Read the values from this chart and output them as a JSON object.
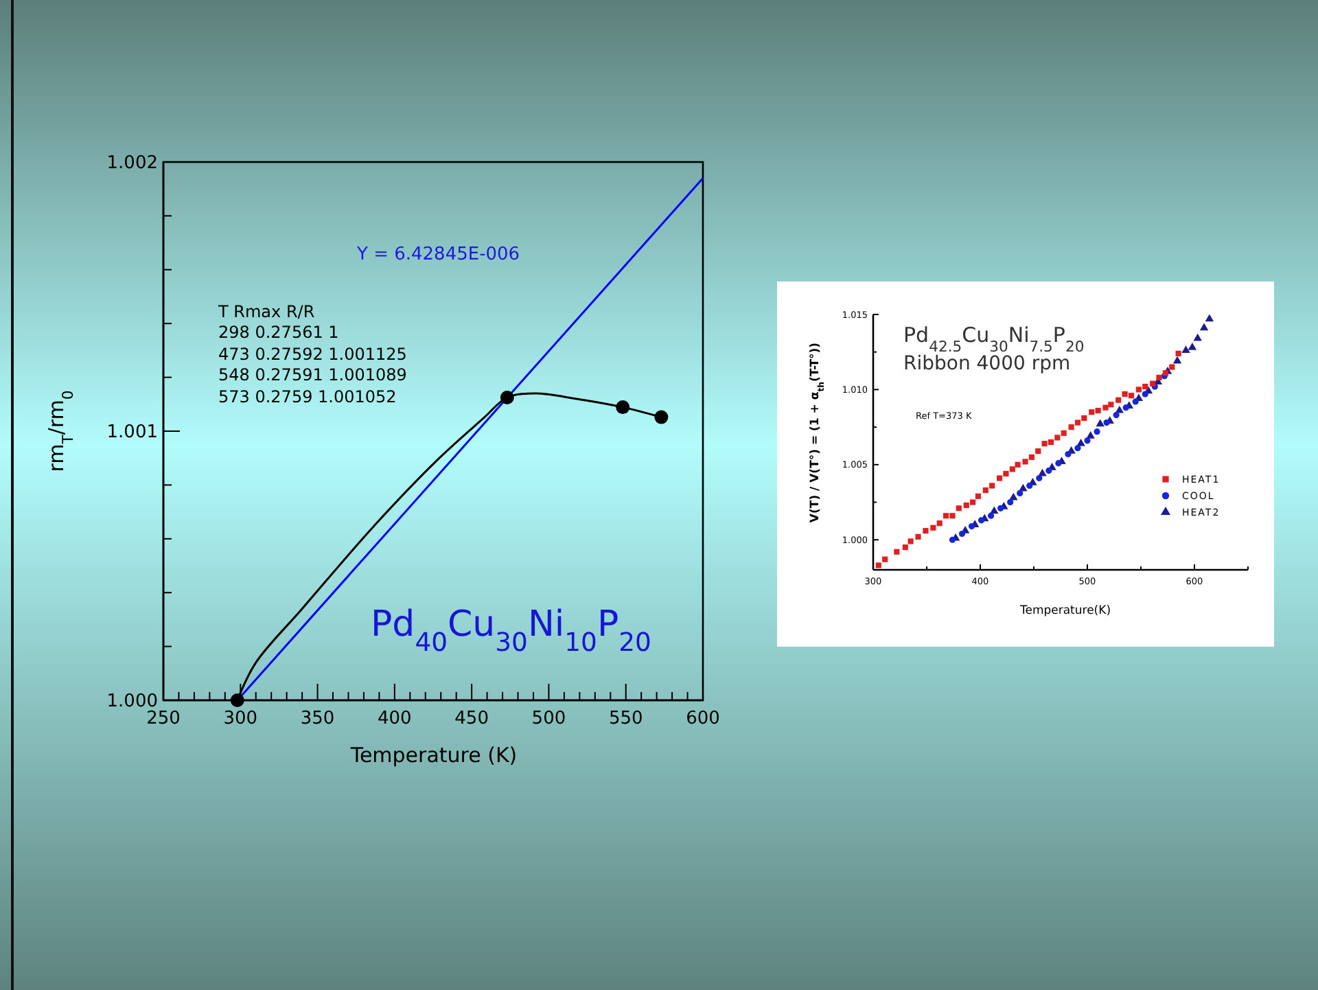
{
  "chart_data": [
    {
      "type": "line",
      "xlabel": "Temperature (K)",
      "ylabel": "rm$_{T}$/rm$_{0}$",
      "xlim": [
        250,
        600
      ],
      "ylim": [
        1.0,
        1.002
      ],
      "xticks": [
        250,
        {
          "value": 260,
          "label": null
        },
        {
          "value": 270,
          "label": null
        },
        {
          "value": 280,
          "label": null
        },
        {
          "value": 290,
          "label": null
        },
        300,
        {
          "value": 310,
          "label": null
        },
        {
          "value": 320,
          "label": null
        },
        {
          "value": 330,
          "label": null
        },
        {
          "value": 340,
          "label": null
        },
        350,
        {
          "value": 360,
          "label": null
        },
        {
          "value": 370,
          "label": null
        },
        {
          "value": 380,
          "label": null
        },
        {
          "value": 390,
          "label": null
        },
        400,
        {
          "value": 410,
          "label": null
        },
        {
          "value": 420,
          "label": null
        },
        {
          "value": 430,
          "label": null
        },
        {
          "value": 440,
          "label": null
        },
        450,
        {
          "value": 460,
          "label": null
        },
        {
          "value": 470,
          "label": null
        },
        {
          "value": 480,
          "label": null
        },
        {
          "value": 490,
          "label": null
        },
        500,
        {
          "value": 510,
          "label": null
        },
        {
          "value": 520,
          "label": null
        },
        {
          "value": 530,
          "label": null
        },
        {
          "value": 540,
          "label": null
        },
        550,
        {
          "value": 560,
          "label": null
        },
        {
          "value": 570,
          "label": null
        },
        {
          "value": 580,
          "label": null
        },
        {
          "value": 590,
          "label": null
        },
        600
      ],
      "yticks": [
        {
          "value": 1.0,
          "label": "1.000"
        },
        {
          "value": 1.0002,
          "label": null
        },
        {
          "value": 1.0004,
          "label": null
        },
        {
          "value": 1.0006,
          "label": null
        },
        {
          "value": 1.0008,
          "label": null
        },
        {
          "value": 1.001,
          "label": "1.001"
        },
        {
          "value": 1.0012,
          "label": null
        },
        {
          "value": 1.0014,
          "label": null
        },
        {
          "value": 1.0016,
          "label": null
        },
        {
          "value": 1.0018,
          "label": null
        },
        {
          "value": 1.002,
          "label": "1.002"
        }
      ],
      "series": [
        {
          "color": "#000000",
          "x": [
            298,
            310,
            340,
            387,
            429,
            458,
            473,
            491,
            518,
            548,
            573
          ],
          "values": [
            1.0,
            1.00014,
            1.00034,
            1.00065,
            1.0009,
            1.00105,
            1.001125,
            1.00114,
            1.00112,
            1.001089,
            1.001052
          ]
        },
        {
          "type": "scatter",
          "color": "#000000",
          "marker": "circle",
          "x": [
            298,
            473,
            548,
            573
          ],
          "values": [
            1.0,
            1.001125,
            1.001089,
            1.001052
          ]
        },
        {
          "color": "#0000ff",
          "x": [
            298,
            600
          ],
          "values": [
            1.0,
            1.00194
          ]
        }
      ],
      "annotations": [
        "T  Rmax  R/R",
        "298  0.27561  1",
        "473  0.27592  1.001125",
        "548  0.27591  1.001089",
        "573  0.2759  1.001052",
        "Y =  6.42845E-006",
        "Pd$_{40}$Cu$_{30}$Ni$_{10}$P$_{20}$"
      ]
    },
    {
      "type": "scatter",
      "title": "Pd$_{42.5}$Cu$_{30}$Ni$_{7.5}$P$_{20}$",
      "subtitle": "Ribbon 4000 rpm",
      "xlabel": "Temperature(K)",
      "ylabel": "V(T) / V(T°) = (1 + α$_{th}$(T-T°))",
      "xlim": [
        300,
        650
      ],
      "ylim": [
        0.998,
        1.015
      ],
      "xticks": [
        300,
        {
          "value": 350,
          "label": null
        },
        400,
        {
          "value": 450,
          "label": null
        },
        500,
        {
          "value": 550,
          "label": null
        },
        600,
        {
          "value": 650,
          "label": null
        }
      ],
      "yticks": [
        {
          "value": 1.0,
          "label": "1.000"
        },
        {
          "value": 1.0025,
          "label": null
        },
        {
          "value": 1.005,
          "label": "1.005"
        },
        {
          "value": 1.0075,
          "label": null
        },
        {
          "value": 1.01,
          "label": "1.010"
        },
        {
          "value": 1.0125,
          "label": null
        },
        {
          "value": 1.015,
          "label": "1.015"
        }
      ],
      "legend": "right",
      "series": [
        {
          "name": "HEAT1",
          "color": "#e02020",
          "marker": "square",
          "x": [
            305,
            311,
            322,
            330,
            335,
            342,
            349,
            356,
            362,
            368,
            374,
            380,
            387,
            393,
            398,
            405,
            411,
            418,
            424,
            430,
            435,
            442,
            448,
            454,
            460,
            466,
            472,
            478,
            485,
            491,
            497,
            504,
            510,
            517,
            522,
            529,
            535,
            541,
            548,
            554,
            561,
            567,
            573,
            579,
            585
          ],
          "values": [
            0.9983,
            0.9987,
            0.9992,
            0.9995,
            0.9999,
            1.0002,
            1.0006,
            1.0008,
            1.0011,
            1.0016,
            1.0016,
            1.0021,
            1.0023,
            1.0025,
            1.0029,
            1.0033,
            1.0036,
            1.0041,
            1.0044,
            1.0047,
            1.005,
            1.0052,
            1.0055,
            1.0059,
            1.0064,
            1.0065,
            1.0068,
            1.0071,
            1.0075,
            1.0078,
            1.0081,
            1.0085,
            1.0086,
            1.0088,
            1.009,
            1.0093,
            1.0097,
            1.0096,
            1.01,
            1.0102,
            1.0104,
            1.0108,
            1.0111,
            1.0115,
            1.0124
          ]
        },
        {
          "name": "COOL",
          "color": "#1428d8",
          "marker": "circle",
          "x": [
            374,
            383,
            392,
            401,
            410,
            419,
            428,
            437,
            446,
            455,
            464,
            473,
            482,
            491,
            500,
            509,
            518,
            527,
            536,
            545,
            554,
            563,
            572
          ],
          "values": [
            1.0,
            1.0004,
            1.0009,
            1.0013,
            1.0016,
            1.0021,
            1.0025,
            1.0031,
            1.0036,
            1.0041,
            1.0046,
            1.0051,
            1.0057,
            1.0061,
            1.0066,
            1.0072,
            1.0078,
            1.0083,
            1.0088,
            1.0092,
            1.0097,
            1.0102,
            1.0109
          ]
        },
        {
          "name": "HEAT2",
          "color": "#1c1c90",
          "marker": "triangle",
          "x": [
            377,
            386,
            395,
            404,
            413,
            422,
            431,
            440,
            449,
            458,
            467,
            476,
            485,
            494,
            503,
            512,
            521,
            530,
            539,
            548,
            557,
            566,
            575,
            584,
            592,
            598,
            603,
            609,
            614
          ],
          "values": [
            1.0001,
            1.0006,
            1.001,
            1.0014,
            1.0019,
            1.0022,
            1.0028,
            1.0034,
            1.0038,
            1.0044,
            1.0048,
            1.0052,
            1.0059,
            1.0064,
            1.0069,
            1.0077,
            1.0079,
            1.0086,
            1.0089,
            1.0094,
            1.0099,
            1.0105,
            1.0112,
            1.0119,
            1.0126,
            1.0128,
            1.0134,
            1.0141,
            1.0147
          ]
        }
      ],
      "annotations": [
        "Ref T=373 K"
      ]
    }
  ]
}
